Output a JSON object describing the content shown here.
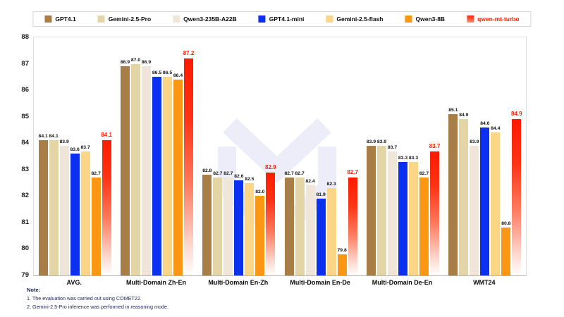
{
  "chart_data": {
    "type": "bar",
    "title": "",
    "categories": [
      "AVG.",
      "Multi-Domain Zh-En",
      "Multi-Domain En-Zh",
      "Multi-Domain En-De",
      "Multi-Domain De-En",
      "WMT24"
    ],
    "series": [
      {
        "name": "GPT4.1",
        "color": "#A87E46",
        "values": [
          84.1,
          86.9,
          82.8,
          82.7,
          83.9,
          85.1
        ]
      },
      {
        "name": "Gemini-2.5-Pro",
        "color": "#E4D5A7",
        "values": [
          84.1,
          87.0,
          82.7,
          82.7,
          83.9,
          84.9
        ]
      },
      {
        "name": "Qwen3-235B-A22B",
        "color": "#EFE6D9",
        "values": [
          83.9,
          86.9,
          82.7,
          82.4,
          83.7,
          83.9
        ]
      },
      {
        "name": "GPT4.1-mini",
        "color": "#0C30F0",
        "values": [
          83.6,
          86.5,
          82.6,
          81.9,
          83.3,
          84.6
        ]
      },
      {
        "name": "Gemini-2.5-flash",
        "color": "#FCD687",
        "values": [
          83.7,
          86.5,
          82.5,
          82.3,
          83.3,
          84.4
        ]
      },
      {
        "name": "Qwen3-8B",
        "color": "#FB9712",
        "values": [
          82.7,
          86.4,
          82.0,
          79.8,
          82.7,
          80.8
        ]
      },
      {
        "name": "qwen-mt-turbo",
        "color": "#FF2000",
        "gradient": true,
        "highlight": true,
        "values": [
          84.1,
          87.2,
          82.9,
          82.7,
          83.7,
          84.9
        ]
      }
    ],
    "ylim": [
      79,
      88
    ],
    "yticks": [
      79,
      80,
      81,
      82,
      83,
      84,
      85,
      86,
      87,
      88
    ],
    "legend_position": "top",
    "grid": false,
    "xlabel": "",
    "ylabel": ""
  },
  "note": {
    "title": "Note:",
    "items": [
      "1. The evaluation was carried out using COMET22.",
      "2. Gemini-2.5-Pro inference was performed in reasoning mode."
    ]
  },
  "colors": {
    "highlight_red": "#FF2000",
    "watermark_lavender": "#ECEDF9",
    "axis_border": "#DEDEDE",
    "note_navy": "#1B2150"
  }
}
